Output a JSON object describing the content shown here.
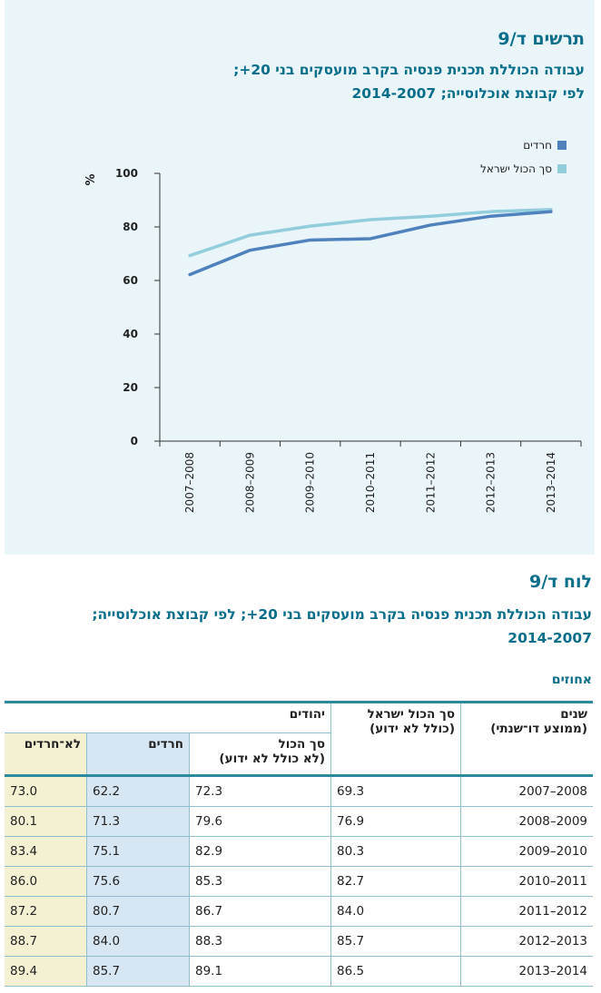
{
  "figure": {
    "label": "תרשים ד/9",
    "title_line1": "עבודה הכוללת תכנית פנסיה בקרב מועסקים בני 20+;",
    "title_line2": "לפי קבוצת אוכלוסייה; 2014-2007"
  },
  "chart_data": {
    "type": "line",
    "categories": [
      "2007–2008",
      "2008–2009",
      "2009–2010",
      "2010–2011",
      "2011–2012",
      "2012–2013",
      "2013–2014"
    ],
    "series": [
      {
        "name": "חרדים",
        "color": "#4f81bd",
        "values": [
          62.2,
          71.3,
          75.1,
          75.6,
          80.7,
          84.0,
          85.7
        ]
      },
      {
        "name": "סך הכול ישראל",
        "color": "#92cddc",
        "values": [
          69.3,
          76.9,
          80.3,
          82.7,
          84.0,
          85.7,
          86.5
        ]
      }
    ],
    "ylabel": "%",
    "ylim": [
      0,
      100
    ],
    "yticks": [
      0,
      20,
      40,
      60,
      80,
      100
    ],
    "legend_position": "top-right"
  },
  "table": {
    "label": "לוח ד/9",
    "title_line1": "עבודה הכוללת תכנית פנסיה בקרב מועסקים בני 20+; לפי קבוצת אוכלוסייה;",
    "title_line2": "2014-2007",
    "units": "אחוזים",
    "headers": {
      "years_line1": "שנים",
      "years_line2": "(ממוצע דו־שנתי)",
      "total_line1": "סך הכול ישראל",
      "total_line2": "(כולל לא ידוע)",
      "jews": "יהודים",
      "jews_total_line1": "סך הכול",
      "jews_total_line2": "(לא כולל לא ידוע)",
      "haredim": "חרדים",
      "non_haredim": "לא־חרדים"
    },
    "rows": [
      {
        "years": "2008–2007",
        "total": "69.3",
        "jews_total": "72.3",
        "haredim": "62.2",
        "non_haredim": "73.0"
      },
      {
        "years": "2009–2008",
        "total": "76.9",
        "jews_total": "79.6",
        "haredim": "71.3",
        "non_haredim": "80.1"
      },
      {
        "years": "2010–2009",
        "total": "80.3",
        "jews_total": "82.9",
        "haredim": "75.1",
        "non_haredim": "83.4"
      },
      {
        "years": "2011–2010",
        "total": "82.7",
        "jews_total": "85.3",
        "haredim": "75.6",
        "non_haredim": "86.0"
      },
      {
        "years": "2012–2011",
        "total": "84.0",
        "jews_total": "86.7",
        "haredim": "80.7",
        "non_haredim": "87.2"
      },
      {
        "years": "2013–2012",
        "total": "85.7",
        "jews_total": "88.3",
        "haredim": "84.0",
        "non_haredim": "88.7"
      },
      {
        "years": "2014–2013",
        "total": "86.5",
        "jews_total": "89.1",
        "haredim": "85.7",
        "non_haredim": "89.4"
      }
    ]
  }
}
